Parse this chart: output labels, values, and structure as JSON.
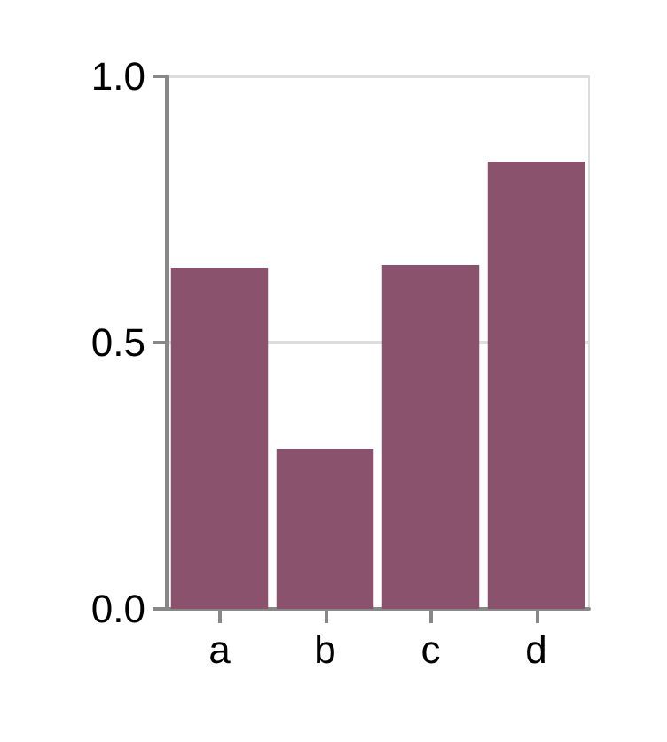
{
  "chart_data": {
    "type": "bar",
    "categories": [
      "a",
      "b",
      "c",
      "d"
    ],
    "values": [
      0.64,
      0.3,
      0.645,
      0.84
    ],
    "color": "#8a526d",
    "ylim": [
      0,
      1
    ],
    "yticks": [
      {
        "value": 0,
        "label": "0.0"
      },
      {
        "value": 0.5,
        "label": "0.5"
      },
      {
        "value": 1,
        "label": "1.0"
      }
    ],
    "grid": "y"
  }
}
